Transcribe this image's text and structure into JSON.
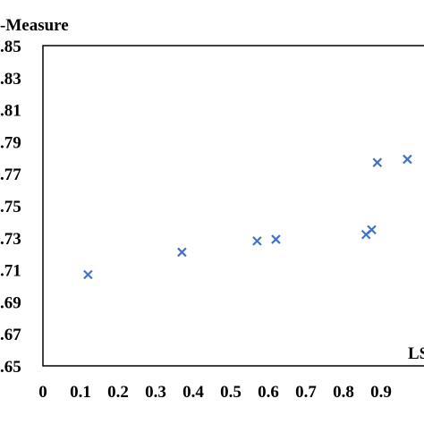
{
  "chart_data": {
    "type": "scatter",
    "title": "",
    "ylabel": "-Measure",
    "xlabel": "LS",
    "xlim": [
      0,
      1.0
    ],
    "ylim": [
      0.65,
      0.85
    ],
    "x_ticks": [
      "0",
      "0.1",
      "0.2",
      "0.3",
      "0.4",
      "0.5",
      "0.6",
      "0.7",
      "0.8",
      "0.9"
    ],
    "y_ticks": [
      ".65",
      ".67",
      ".69",
      ".71",
      ".73",
      ".75",
      ".77",
      ".79",
      ".81",
      ".83",
      ".85"
    ],
    "grid": false,
    "legend": "none",
    "marker": "x",
    "marker_color": "#4472C4",
    "series": [
      {
        "x": [
          0.12,
          0.37,
          0.57,
          0.62,
          0.86,
          0.875,
          0.89,
          0.97
        ],
        "y": [
          0.707,
          0.721,
          0.728,
          0.729,
          0.732,
          0.735,
          0.777,
          0.779
        ]
      }
    ]
  }
}
